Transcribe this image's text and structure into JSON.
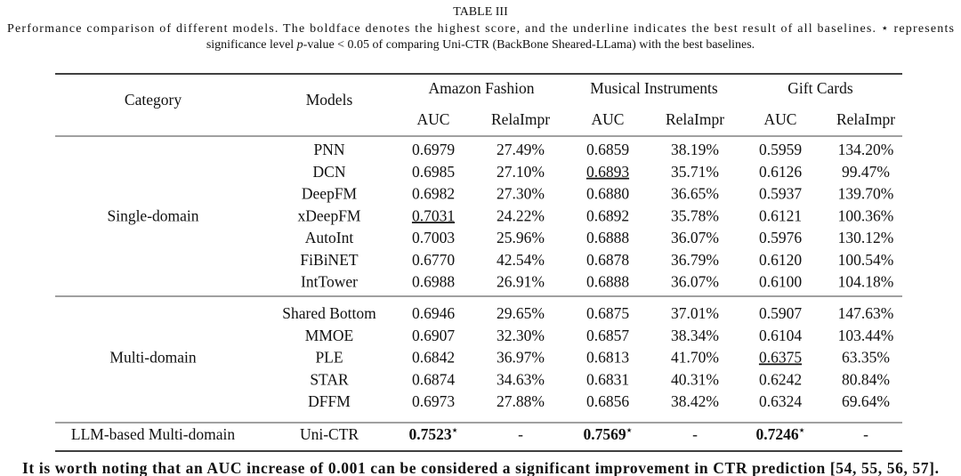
{
  "title": "TABLE III",
  "caption": {
    "line1": "Performance comparison of different models. The boldface denotes the highest score, and the underline indicates the best result of all baselines. ⋆ represents",
    "line2": [
      "significance level ",
      "p",
      "-value < 0.05 of comparing Uni-CTR (BackBone Sheared-LLama) with the best baselines."
    ]
  },
  "table": {
    "header": {
      "category": "Category",
      "models": "Models",
      "groups": [
        {
          "name": "Amazon Fashion",
          "columns": [
            "AUC",
            "RelaImpr"
          ]
        },
        {
          "name": "Musical Instruments",
          "columns": [
            "AUC",
            "RelaImpr"
          ]
        },
        {
          "name": "Gift Cards",
          "columns": [
            "AUC",
            "RelaImpr"
          ]
        }
      ]
    },
    "sections": [
      {
        "category": "Single-domain",
        "rows": [
          {
            "model": "PNN",
            "cells": [
              "0.6979",
              "27.49%",
              "0.6859",
              "38.19%",
              "0.5959",
              "134.20%"
            ]
          },
          {
            "model": "DCN",
            "cells": [
              "0.6985",
              "27.10%",
              {
                "text": "0.6893",
                "underline": true
              },
              "35.71%",
              "0.6126",
              "99.47%"
            ]
          },
          {
            "model": "DeepFM",
            "cells": [
              "0.6982",
              "27.30%",
              "0.6880",
              "36.65%",
              "0.5937",
              "139.70%"
            ]
          },
          {
            "model": "xDeepFM",
            "cells": [
              {
                "text": "0.7031",
                "underline": true
              },
              "24.22%",
              "0.6892",
              "35.78%",
              "0.6121",
              "100.36%"
            ]
          },
          {
            "model": "AutoInt",
            "cells": [
              "0.7003",
              "25.96%",
              "0.6888",
              "36.07%",
              "0.5976",
              "130.12%"
            ]
          },
          {
            "model": "FiBiNET",
            "cells": [
              "0.6770",
              "42.54%",
              "0.6878",
              "36.79%",
              "0.6120",
              "100.54%"
            ]
          },
          {
            "model": "IntTower",
            "cells": [
              "0.6988",
              "26.91%",
              "0.6888",
              "36.07%",
              "0.6100",
              "104.18%"
            ]
          }
        ]
      },
      {
        "category": "Multi-domain",
        "rows": [
          {
            "model": "Shared Bottom",
            "cells": [
              "0.6946",
              "29.65%",
              "0.6875",
              "37.01%",
              "0.5907",
              "147.63%"
            ]
          },
          {
            "model": "MMOE",
            "cells": [
              "0.6907",
              "32.30%",
              "0.6857",
              "38.34%",
              "0.6104",
              "103.44%"
            ]
          },
          {
            "model": "PLE",
            "cells": [
              "0.6842",
              "36.97%",
              "0.6813",
              "41.70%",
              {
                "text": "0.6375",
                "underline": true
              },
              "63.35%"
            ]
          },
          {
            "model": "STAR",
            "cells": [
              "0.6874",
              "34.63%",
              "0.6831",
              "40.31%",
              "0.6242",
              "80.84%"
            ]
          },
          {
            "model": "DFFM",
            "cells": [
              "0.6973",
              "27.88%",
              "0.6856",
              "38.42%",
              "0.6324",
              "69.64%"
            ]
          }
        ]
      },
      {
        "category": "LLM-based Multi-domain",
        "rows": [
          {
            "model": "Uni-CTR",
            "cells": [
              {
                "text": "0.7523",
                "sup": "⋆",
                "bold": true
              },
              "-",
              {
                "text": "0.7569",
                "sup": "⋆",
                "bold": true
              },
              "-",
              {
                "text": "0.7246",
                "sup": "⋆",
                "bold": true
              },
              "-"
            ]
          }
        ]
      }
    ]
  },
  "note": "It is worth noting that an AUC increase of 0.001 can be considered a significant improvement in CTR prediction [54, 55, 56, 57]."
}
